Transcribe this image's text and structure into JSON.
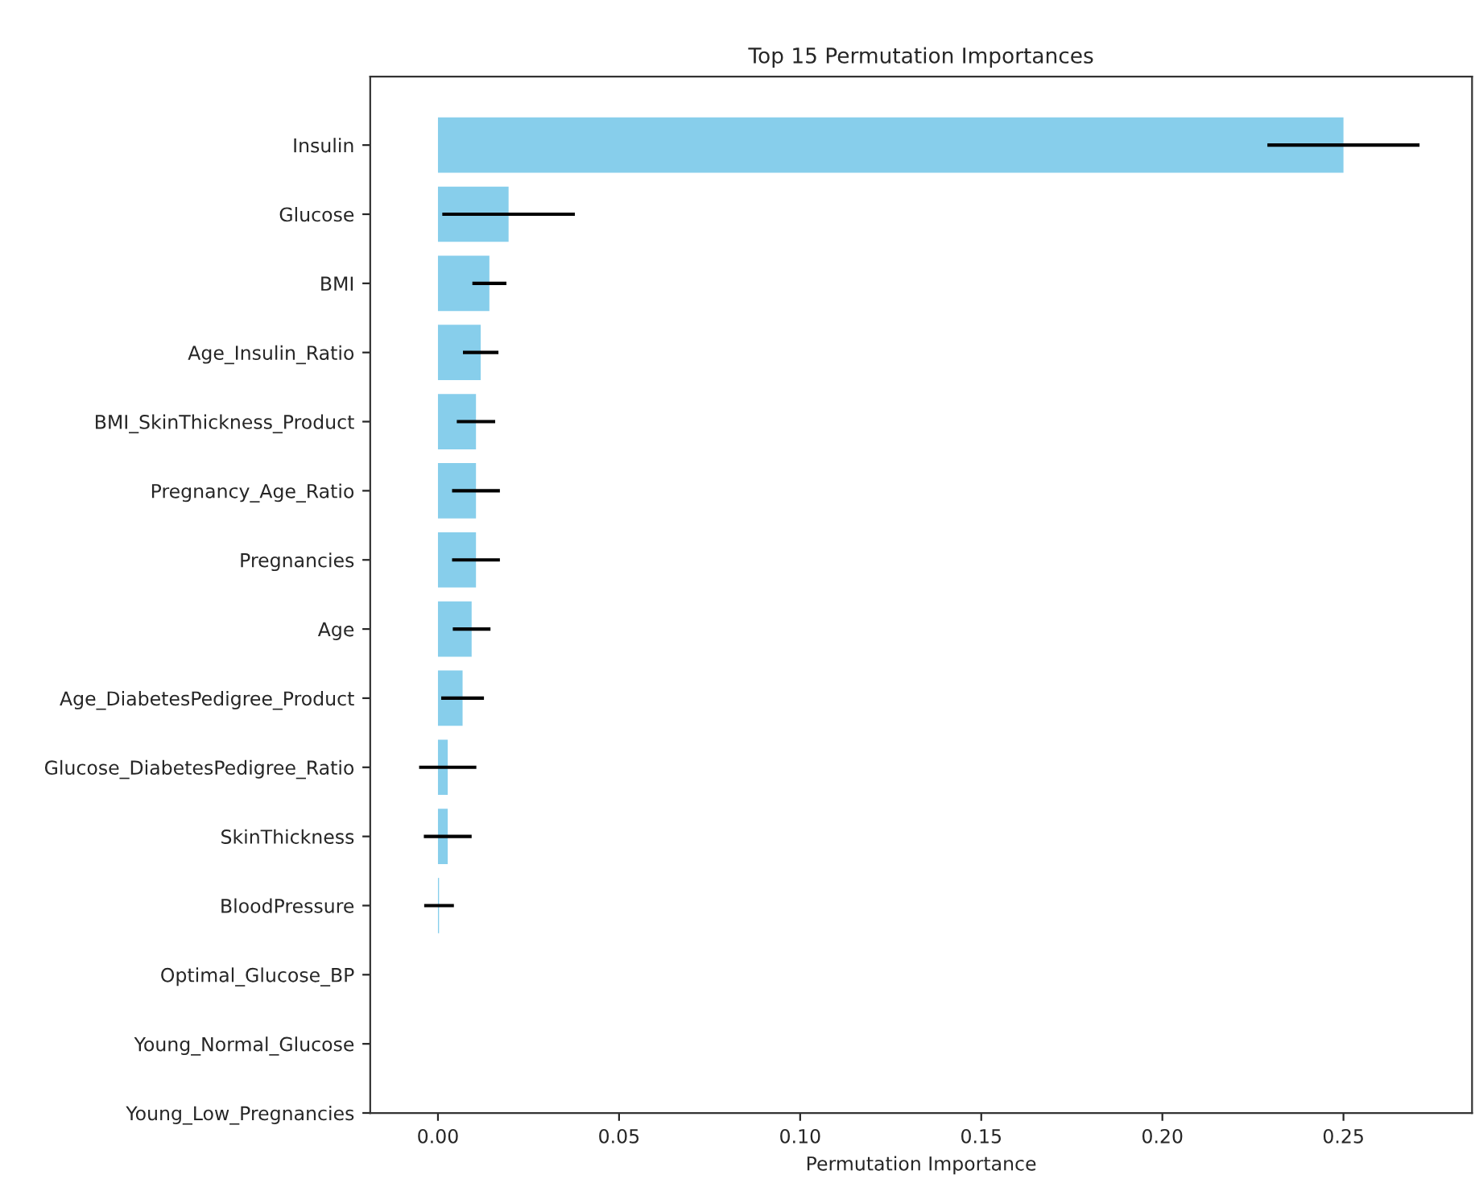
{
  "chart_data": {
    "type": "bar",
    "orientation": "horizontal",
    "title": "Top 15 Permutation Importances",
    "xlabel": "Permutation Importance",
    "categories": [
      "Insulin",
      "Glucose",
      "BMI",
      "Age_Insulin_Ratio",
      "BMI_SkinThickness_Product",
      "Pregnancy_Age_Ratio",
      "Pregnancies",
      "Age",
      "Age_DiabetesPedigree_Product",
      "Glucose_DiabetesPedigree_Ratio",
      "SkinThickness",
      "BloodPressure",
      "Optimal_Glucose_BP",
      "Young_Normal_Glucose",
      "Young_Low_Pregnancies"
    ],
    "values": [
      0.25,
      0.0195,
      0.0142,
      0.0118,
      0.0105,
      0.0105,
      0.0105,
      0.0093,
      0.0068,
      0.0027,
      0.0027,
      0.0003,
      0,
      0,
      0
    ],
    "errors": [
      0.021,
      0.0183,
      0.0047,
      0.0049,
      0.0053,
      0.0066,
      0.0066,
      0.0052,
      0.0059,
      0.0079,
      0.0066,
      0.0041,
      null,
      null,
      null
    ],
    "color": "#87ceeb",
    "xlim": [
      -0.0187,
      0.2855
    ],
    "xticks": [
      {
        "value": 0,
        "label": "0.00"
      },
      {
        "value": 0.05,
        "label": "0.05"
      },
      {
        "value": 0.1,
        "label": "0.10"
      },
      {
        "value": 0.15,
        "label": "0.15"
      },
      {
        "value": 0.2,
        "label": "0.20"
      },
      {
        "value": 0.25,
        "label": "0.25"
      }
    ],
    "grid": false
  }
}
